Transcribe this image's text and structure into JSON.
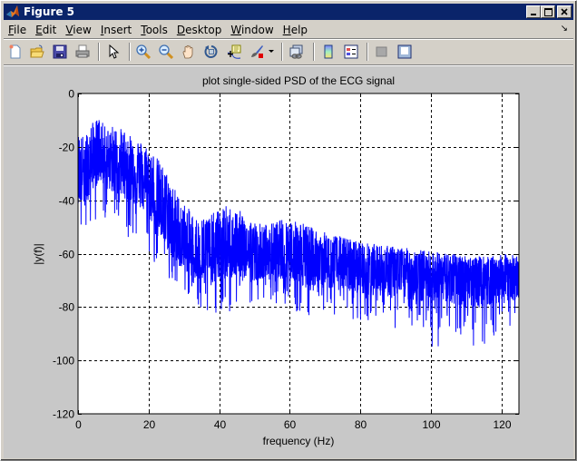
{
  "window": {
    "title": "Figure 5",
    "controls": {
      "minimize": "_",
      "maximize": "□",
      "close": "✕"
    }
  },
  "menubar": {
    "items": [
      {
        "label": "File",
        "mnemonic": "F"
      },
      {
        "label": "Edit",
        "mnemonic": "E"
      },
      {
        "label": "View",
        "mnemonic": "V"
      },
      {
        "label": "Insert",
        "mnemonic": "I"
      },
      {
        "label": "Tools",
        "mnemonic": "T"
      },
      {
        "label": "Desktop",
        "mnemonic": "D"
      },
      {
        "label": "Window",
        "mnemonic": "W"
      },
      {
        "label": "Help",
        "mnemonic": "H"
      }
    ],
    "dock_icon": "↘"
  },
  "toolbar": {
    "buttons": [
      {
        "name": "new-figure",
        "icon": "new-file-icon"
      },
      {
        "name": "open-file",
        "icon": "folder-open-icon"
      },
      {
        "name": "save-figure",
        "icon": "save-disk-icon"
      },
      {
        "name": "print-figure",
        "icon": "printer-icon"
      },
      {
        "name": "edit-plot",
        "icon": "pointer-arrow-icon"
      },
      {
        "name": "zoom-in",
        "icon": "zoom-in-icon"
      },
      {
        "name": "zoom-out",
        "icon": "zoom-out-icon"
      },
      {
        "name": "pan",
        "icon": "hand-pan-icon"
      },
      {
        "name": "rotate-3d",
        "icon": "rotate-icon"
      },
      {
        "name": "data-cursor",
        "icon": "data-cursor-icon"
      },
      {
        "name": "brush",
        "icon": "brush-icon"
      },
      {
        "name": "brush-dropdown",
        "icon": "dropdown-triangle-icon"
      },
      {
        "name": "link-plot",
        "icon": "link-plot-icon"
      },
      {
        "name": "insert-colorbar",
        "icon": "colorbar-icon"
      },
      {
        "name": "insert-legend",
        "icon": "legend-icon"
      },
      {
        "name": "hide-plot-tools",
        "icon": "hide-tools-icon"
      },
      {
        "name": "show-plot-tools",
        "icon": "show-tools-icon"
      }
    ]
  },
  "colors": {
    "line": "#0000ff",
    "figure_bg": "#c8c8c8",
    "axes_bg": "#ffffff",
    "titlebar": "#0a246a",
    "grid": "#000000"
  },
  "chart_data": {
    "type": "line",
    "title": "plot single-sided PSD of the ECG signal",
    "xlabel": "frequency (Hz)",
    "ylabel": "|y(f)|",
    "xlim": [
      0,
      125
    ],
    "ylim": [
      -120,
      0
    ],
    "xticks": [
      0,
      20,
      40,
      60,
      80,
      100,
      120
    ],
    "yticks": [
      0,
      -20,
      -40,
      -60,
      -80,
      -100,
      -120
    ],
    "grid": true,
    "grid_style": "dashed",
    "legend": null,
    "series": [
      {
        "name": "PSD",
        "color": "#0000ff",
        "description": "Dense noisy spectrum; envelope values approximated (dB)",
        "x": [
          0,
          2,
          4,
          6,
          8,
          10,
          14,
          18,
          20,
          22,
          24,
          26,
          28,
          30,
          34,
          38,
          42,
          46,
          50,
          54,
          58,
          62,
          66,
          70,
          76,
          82,
          88,
          94,
          100,
          106,
          112,
          118,
          122,
          125
        ],
        "upper": [
          -15,
          -16,
          -11,
          -9,
          -13,
          -12,
          -14,
          -18,
          -20,
          -23,
          -27,
          -31,
          -37,
          -41,
          -47,
          -45,
          -42,
          -44,
          -48,
          -49,
          -47,
          -47,
          -50,
          -52,
          -54,
          -56,
          -57,
          -58,
          -59,
          -60,
          -61,
          -61,
          -60,
          -61
        ],
        "typical": [
          -28,
          -30,
          -25,
          -22,
          -24,
          -26,
          -28,
          -32,
          -35,
          -40,
          -47,
          -52,
          -57,
          -59,
          -62,
          -61,
          -59,
          -60,
          -62,
          -62,
          -61,
          -61,
          -62,
          -64,
          -65,
          -66,
          -66,
          -67,
          -67,
          -68,
          -68,
          -68,
          -67,
          -68
        ],
        "lower": [
          -57,
          -58,
          -50,
          -46,
          -50,
          -52,
          -54,
          -58,
          -62,
          -64,
          -66,
          -70,
          -73,
          -74,
          -82,
          -83,
          -83,
          -80,
          -80,
          -77,
          -80,
          -82,
          -84,
          -84,
          -85,
          -87,
          -88,
          -90,
          -96,
          -93,
          -96,
          -93,
          -92,
          -88
        ]
      }
    ]
  }
}
